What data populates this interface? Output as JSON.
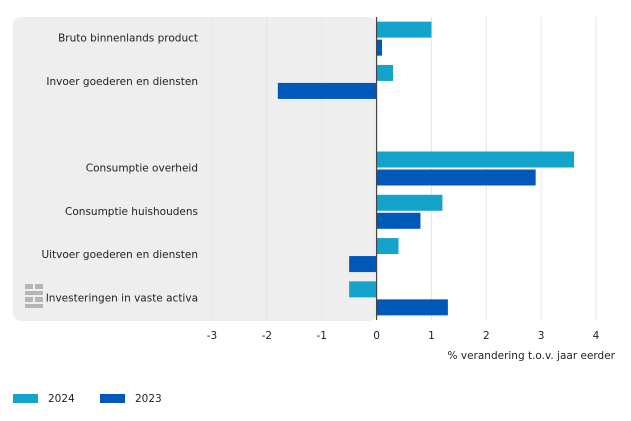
{
  "chart_data": {
    "type": "bar",
    "orientation": "horizontal",
    "categories": [
      "Bruto binnenlands product",
      "Invoer goederen en diensten",
      null,
      "Consumptie overheid",
      "Consumptie huishoudens",
      "Uitvoer goederen en diensten",
      "Investeringen in vaste activa"
    ],
    "series": [
      {
        "name": "2024",
        "color": "#14a3cb",
        "values": [
          1.0,
          0.3,
          null,
          3.6,
          1.2,
          0.4,
          -0.5
        ]
      },
      {
        "name": "2023",
        "color": "#0058b8",
        "values": [
          0.1,
          -1.8,
          null,
          2.9,
          0.8,
          -0.5,
          1.3
        ]
      }
    ],
    "xlim": [
      -3,
      4
    ],
    "xticks": [
      -3,
      -2,
      -1,
      0,
      1,
      2,
      3,
      4
    ],
    "x_label": "% verandering t.o.v. jaar eerder",
    "grid": true
  }
}
